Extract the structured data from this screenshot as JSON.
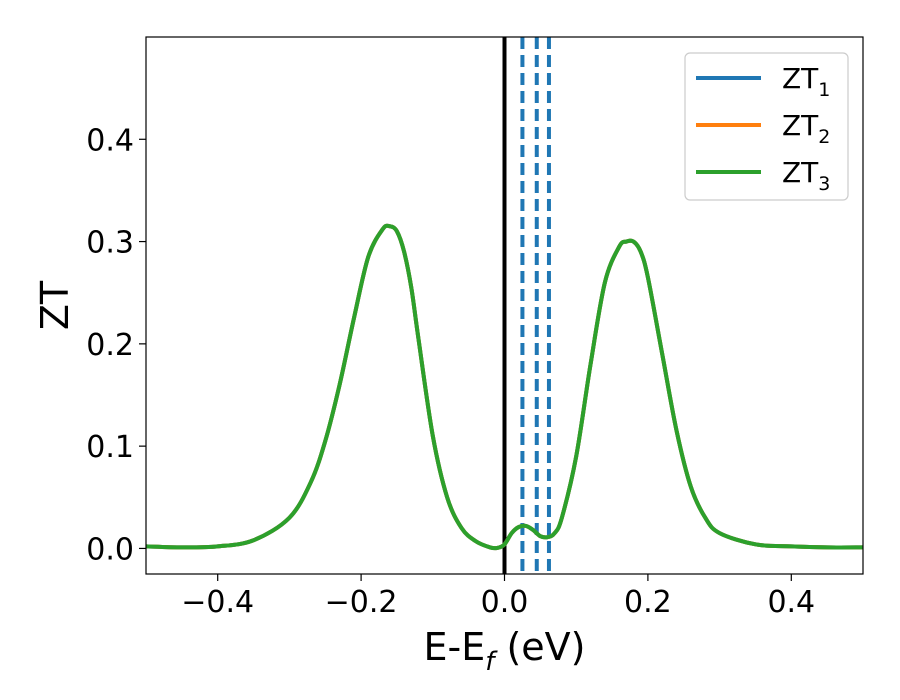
{
  "chart_data": {
    "type": "line",
    "xlabel": "E-E",
    "xlabel_sub": "f",
    "xlabel_unit": "(eV)",
    "ylabel": "ZT",
    "xlim": [
      -0.5,
      0.5
    ],
    "ylim": [
      -0.025,
      0.5
    ],
    "x_ticks": [
      -0.4,
      -0.2,
      0.0,
      0.2,
      0.4
    ],
    "x_tick_labels": [
      "−0.4",
      "−0.2",
      "0.0",
      "0.2",
      "0.4"
    ],
    "y_ticks": [
      0.0,
      0.1,
      0.2,
      0.3,
      0.4
    ],
    "y_tick_labels": [
      "0.0",
      "0.1",
      "0.2",
      "0.3",
      "0.4"
    ],
    "grid": false,
    "legend_position": "top-right",
    "fermi_line_x": 0.0,
    "dashed_lines_x": [
      0.025,
      0.045,
      0.062
    ],
    "series": [
      {
        "name": "ZT",
        "sub": "1",
        "color": "#1f77b4"
      },
      {
        "name": "ZT",
        "sub": "2",
        "color": "#ff7f0e"
      },
      {
        "name": "ZT",
        "sub": "3",
        "color": "#2ca02c"
      }
    ],
    "curve": {
      "x": [
        -0.5,
        -0.45,
        -0.4,
        -0.35,
        -0.3,
        -0.27,
        -0.25,
        -0.23,
        -0.21,
        -0.19,
        -0.17,
        -0.16,
        -0.15,
        -0.14,
        -0.13,
        -0.12,
        -0.1,
        -0.08,
        -0.06,
        -0.04,
        -0.02,
        -0.01,
        0.0,
        0.01,
        0.02,
        0.03,
        0.04,
        0.05,
        0.06,
        0.07,
        0.08,
        0.1,
        0.12,
        0.14,
        0.16,
        0.17,
        0.18,
        0.19,
        0.2,
        0.22,
        0.24,
        0.26,
        0.28,
        0.3,
        0.35,
        0.4,
        0.45,
        0.5
      ],
      "y": [
        0.002,
        0.001,
        0.002,
        0.008,
        0.03,
        0.065,
        0.105,
        0.16,
        0.225,
        0.285,
        0.312,
        0.315,
        0.31,
        0.29,
        0.255,
        0.205,
        0.11,
        0.05,
        0.02,
        0.007,
        0.001,
        0.0005,
        0.004,
        0.015,
        0.021,
        0.022,
        0.018,
        0.012,
        0.011,
        0.015,
        0.03,
        0.09,
        0.18,
        0.26,
        0.295,
        0.3,
        0.3,
        0.29,
        0.265,
        0.19,
        0.115,
        0.06,
        0.03,
        0.015,
        0.004,
        0.002,
        0.001,
        0.001
      ]
    }
  }
}
